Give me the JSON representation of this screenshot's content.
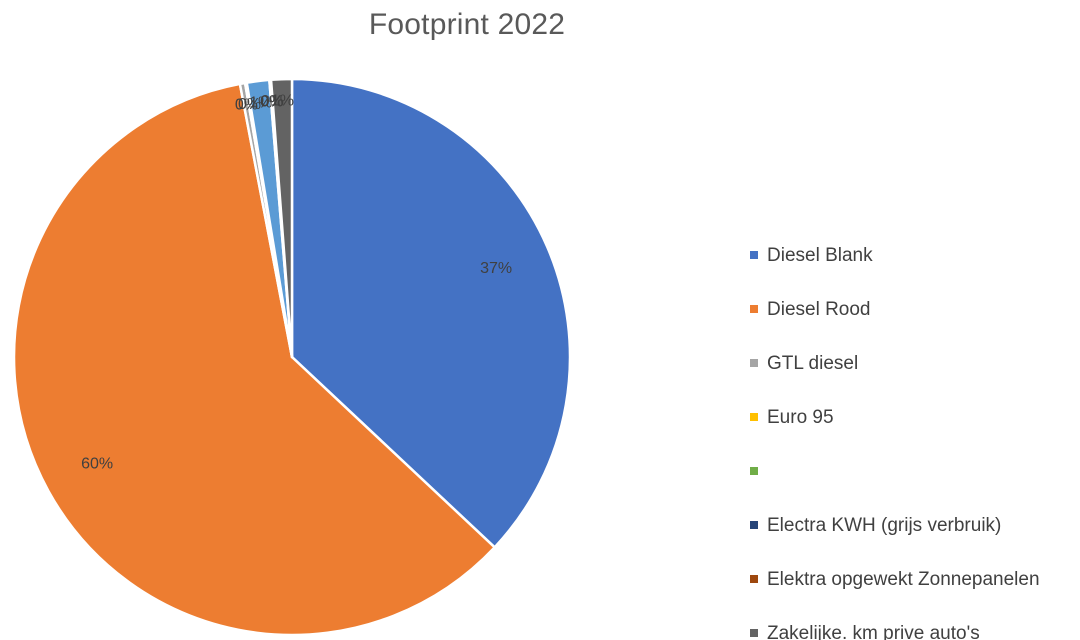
{
  "chart_data": {
    "type": "pie",
    "title": "Footprint 2022",
    "legend_position": "right",
    "slices": [
      {
        "name": "Diesel Blank",
        "value": 37,
        "label": "37%",
        "color": "#4472C4"
      },
      {
        "name": "Diesel Rood",
        "value": 60,
        "label": "60%",
        "color": "#ED7D31"
      },
      {
        "name": "GTL diesel",
        "value": 0.3,
        "label": "0%",
        "color": "#A5A5A5"
      },
      {
        "name": "Euro 95",
        "value": 0.1,
        "label": "0%",
        "color": "#FFC000"
      },
      {
        "name": "",
        "value": 1.3,
        "label": "1%",
        "color": "#5B9BD5"
      },
      {
        "name": "Electra KWH (grijs verbruik)",
        "value": 0.05,
        "label": "0%",
        "color": "#264478"
      },
      {
        "name": "Elektra opgewekt Zonnepanelen",
        "value": 0.05,
        "label": "0%",
        "color": "#9E480E"
      },
      {
        "name": "Zakelijke. km prive auto's",
        "value": 1.2,
        "label": "1%",
        "color": "#636363"
      }
    ],
    "legend": [
      {
        "label": "Diesel Blank",
        "color": "#4472C4"
      },
      {
        "label": "Diesel Rood",
        "color": "#ED7D31"
      },
      {
        "label": "GTL diesel",
        "color": "#A5A5A5"
      },
      {
        "label": "Euro 95",
        "color": "#FFC000"
      },
      {
        "label": "",
        "color": "#70AD47"
      },
      {
        "label": "Electra KWH (grijs verbruik)",
        "color": "#264478"
      },
      {
        "label": "Elektra opgewekt Zonnepanelen",
        "color": "#9E480E"
      },
      {
        "label": "Zakelijke. km prive auto's",
        "color": "#636363"
      }
    ]
  }
}
